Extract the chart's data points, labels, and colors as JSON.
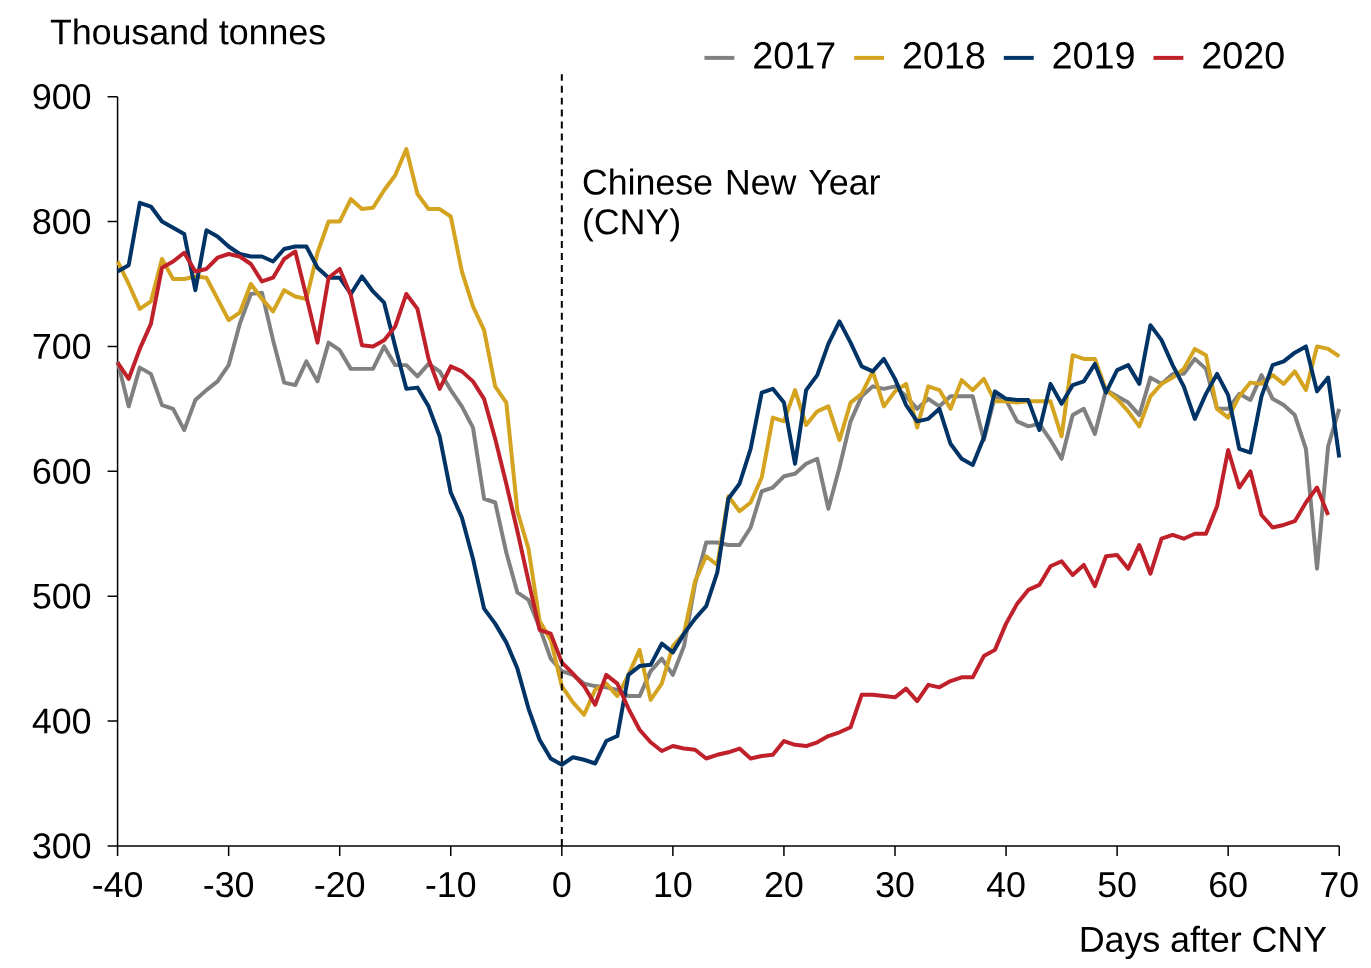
{
  "chart_data": {
    "type": "line",
    "ylabel": "Thousand tonnes",
    "xlabel": "Days after CNY",
    "x": [
      -40,
      -39,
      -38,
      -37,
      -36,
      -35,
      -34,
      -33,
      -32,
      -31,
      -30,
      -29,
      -28,
      -27,
      -26,
      -25,
      -24,
      -23,
      -22,
      -21,
      -20,
      -19,
      -18,
      -17,
      -16,
      -15,
      -14,
      -13,
      -12,
      -11,
      -10,
      -9,
      -8,
      -7,
      -6,
      -5,
      -4,
      -3,
      -2,
      -1,
      0,
      1,
      2,
      3,
      4,
      5,
      6,
      7,
      8,
      9,
      10,
      11,
      12,
      13,
      14,
      15,
      16,
      17,
      18,
      19,
      20,
      21,
      22,
      23,
      24,
      25,
      26,
      27,
      28,
      29,
      30,
      31,
      32,
      33,
      34,
      35,
      36,
      37,
      38,
      39,
      40,
      41,
      42,
      43,
      44,
      45,
      46,
      47,
      48,
      49,
      50,
      51,
      52,
      53,
      54,
      55,
      56,
      57,
      58,
      59,
      60,
      61,
      62,
      63,
      64,
      65,
      66,
      67,
      68,
      69,
      70
    ],
    "series": [
      {
        "name": "2017",
        "color": "#808080",
        "values": [
          688,
          652,
          683,
          678,
          653,
          650,
          633,
          657,
          665,
          672,
          685,
          718,
          742,
          743,
          705,
          671,
          669,
          688,
          672,
          703,
          697,
          682,
          682,
          682,
          700,
          685,
          685,
          676,
          686,
          680,
          665,
          652,
          635,
          578,
          575,
          535,
          503,
          497,
          475,
          450,
          440,
          437,
          430,
          428,
          427,
          425,
          420,
          420,
          440,
          450,
          437,
          460,
          510,
          543,
          543,
          541,
          541,
          555,
          584,
          587,
          596,
          598,
          606,
          610,
          570,
          603,
          640,
          660,
          668,
          666,
          668,
          660,
          650,
          658,
          652,
          660,
          660,
          660,
          625,
          660,
          657,
          640,
          636,
          638,
          625,
          610,
          645,
          650,
          630,
          665,
          660,
          655,
          645,
          675,
          670,
          678,
          678,
          690,
          682,
          650,
          650,
          662,
          657,
          677,
          658,
          653,
          645,
          618,
          522,
          620,
          650
        ]
      },
      {
        "name": "2018",
        "color": "#D4A320",
        "values": [
          768,
          750,
          730,
          736,
          770,
          754,
          754,
          756,
          755,
          738,
          721,
          727,
          750,
          738,
          728,
          745,
          740,
          738,
          775,
          800,
          800,
          818,
          810,
          811,
          825,
          837,
          858,
          822,
          810,
          810,
          804,
          760,
          732,
          713,
          668,
          655,
          568,
          538,
          480,
          465,
          428,
          415,
          405,
          425,
          430,
          420,
          437,
          457,
          417,
          430,
          460,
          470,
          512,
          532,
          525,
          580,
          568,
          575,
          595,
          643,
          640,
          665,
          637,
          648,
          652,
          625,
          655,
          662,
          680,
          652,
          664,
          670,
          635,
          668,
          665,
          650,
          673,
          665,
          674,
          656,
          656,
          655,
          656,
          656,
          656,
          628,
          693,
          690,
          690,
          665,
          658,
          648,
          636,
          660,
          670,
          675,
          682,
          698,
          693,
          650,
          643,
          660,
          671,
          670,
          677,
          670,
          680,
          665,
          700,
          698,
          692
        ]
      },
      {
        "name": "2019",
        "color": "#003366",
        "values": [
          760,
          765,
          815,
          812,
          800,
          795,
          790,
          745,
          793,
          788,
          780,
          774,
          772,
          772,
          768,
          778,
          780,
          780,
          763,
          755,
          755,
          742,
          756,
          744,
          735,
          700,
          666,
          667,
          652,
          628,
          583,
          563,
          530,
          490,
          478,
          463,
          442,
          410,
          385,
          370,
          365,
          371,
          369,
          366,
          384,
          388,
          437,
          444,
          445,
          462,
          455,
          470,
          482,
          492,
          519,
          578,
          590,
          618,
          663,
          666,
          655,
          606,
          665,
          677,
          702,
          720,
          703,
          684,
          680,
          690,
          674,
          653,
          640,
          642,
          650,
          622,
          610,
          605,
          627,
          664,
          658,
          657,
          657,
          633,
          670,
          654,
          669,
          672,
          686,
          663,
          681,
          685,
          670,
          717,
          705,
          685,
          668,
          642,
          662,
          678,
          661,
          618,
          615,
          660,
          685,
          688,
          695,
          700,
          664,
          675,
          611
        ]
      },
      {
        "name": "2020",
        "color": "#C0202A",
        "x": [
          -40,
          -39,
          -38,
          -37,
          -36,
          -35,
          -34,
          -33,
          -32,
          -31,
          -30,
          -29,
          -28,
          -27,
          -26,
          -25,
          -24,
          -23,
          -22,
          -21,
          -20,
          -19,
          -18,
          -17,
          -16,
          -15,
          -14,
          -13,
          -12,
          -11,
          -10,
          -9,
          -8,
          -7,
          -6,
          -5,
          -4,
          -3,
          -2,
          -1,
          0,
          1,
          2,
          3,
          4,
          5,
          6,
          7,
          8,
          9,
          10,
          11,
          12,
          13,
          14,
          15,
          16,
          17,
          18,
          19,
          20,
          21,
          22,
          23,
          24,
          25,
          26,
          27,
          28,
          29,
          30,
          31,
          32,
          33,
          34,
          35,
          36,
          37,
          38,
          39,
          40,
          41,
          42,
          43,
          44,
          45,
          46,
          47,
          48,
          49,
          50,
          51,
          52,
          53,
          54,
          55,
          56,
          57,
          58,
          59,
          60,
          61,
          62,
          63,
          64,
          65,
          66,
          67,
          68,
          69
        ],
        "values": [
          687,
          674,
          698,
          718,
          763,
          768,
          775,
          760,
          762,
          771,
          774,
          772,
          766,
          752,
          755,
          770,
          776,
          740,
          703,
          755,
          762,
          741,
          701,
          700,
          705,
          716,
          742,
          730,
          690,
          666,
          684,
          680,
          672,
          658,
          626,
          590,
          552,
          512,
          473,
          470,
          447,
          438,
          428,
          413,
          437,
          430,
          410,
          393,
          383,
          376,
          380,
          378,
          377,
          370,
          373,
          375,
          378,
          370,
          372,
          373,
          384,
          381,
          380,
          383,
          388,
          391,
          395,
          421,
          421,
          420,
          419,
          426,
          416,
          429,
          427,
          432,
          435,
          435,
          452,
          457,
          478,
          494,
          505,
          509,
          524,
          528,
          517,
          525,
          508,
          532,
          533,
          522,
          541,
          518,
          546,
          549,
          546,
          550,
          550,
          572,
          617,
          587,
          600,
          565,
          555,
          557,
          560,
          575,
          587,
          565
        ]
      }
    ],
    "xlim": [
      -40,
      70
    ],
    "ylim": [
      300,
      900
    ],
    "xticks": [
      -40,
      -30,
      -20,
      -10,
      0,
      10,
      20,
      30,
      40,
      50,
      60,
      70
    ],
    "yticks": [
      300,
      400,
      500,
      600,
      700,
      800,
      900
    ],
    "legend": "top right",
    "ref_lines": [
      {
        "axis": "x",
        "value": 0,
        "label": "Chinese New Year (CNY)",
        "line_style": "dashed",
        "color": "#000000"
      }
    ]
  }
}
